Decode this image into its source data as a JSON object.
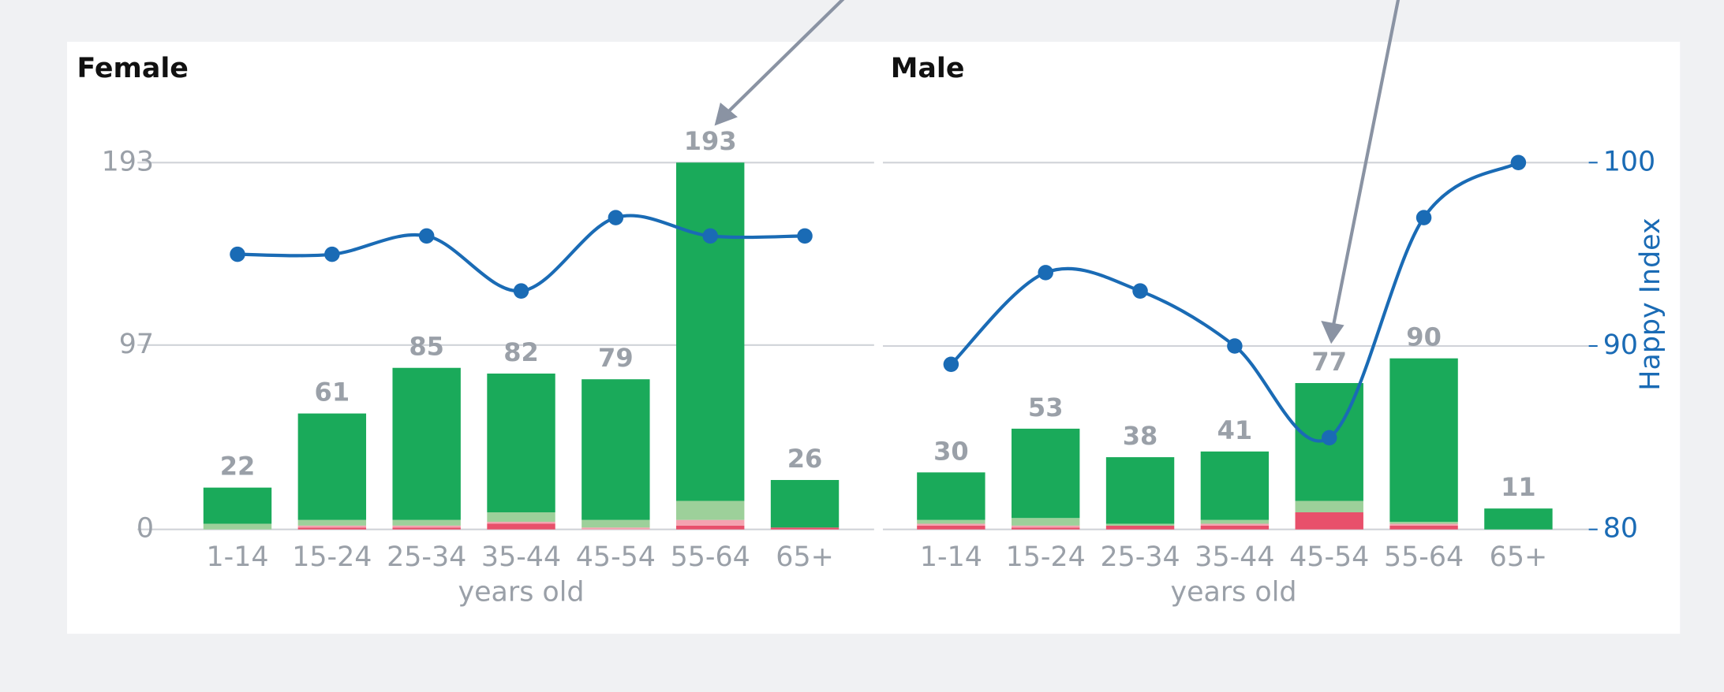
{
  "chart_data": [
    {
      "type": "bar",
      "title": "Female",
      "categories": [
        "1-14",
        "15-24",
        "25-34",
        "35-44",
        "45-54",
        "55-64",
        "65+"
      ],
      "series": [
        {
          "color": "#e8506b",
          "values": [
            0,
            1,
            1,
            3,
            0,
            2,
            1
          ]
        },
        {
          "color": "#f4a3b0",
          "values": [
            0,
            1,
            1,
            1,
            1,
            3,
            0
          ]
        },
        {
          "color": "#9dd09a",
          "values": [
            3,
            3,
            3,
            5,
            4,
            10,
            0
          ]
        },
        {
          "color": "#1aaa5a",
          "values": [
            19,
            56,
            80,
            73,
            74,
            178,
            25
          ]
        },
        {
          "type": "line",
          "axis": "y2",
          "color": "#1a6bb5",
          "values": [
            95,
            95,
            96,
            93,
            97,
            96,
            96
          ]
        }
      ],
      "totals": [
        22,
        61,
        85,
        82,
        79,
        193,
        26
      ],
      "xlabel": "years old",
      "ylim": [
        0,
        193
      ],
      "yticks": [
        0,
        97,
        193
      ],
      "y2lim": [
        80,
        100
      ],
      "grid": true
    },
    {
      "type": "bar",
      "title": "Male",
      "categories": [
        "1-14",
        "15-24",
        "25-34",
        "35-44",
        "45-54",
        "55-64",
        "65+"
      ],
      "series": [
        {
          "color": "#e8506b",
          "values": [
            2,
            1,
            2,
            2,
            9,
            2,
            0
          ]
        },
        {
          "color": "#f4a3b0",
          "values": [
            1,
            1,
            0,
            1,
            0,
            1,
            0
          ]
        },
        {
          "color": "#9dd09a",
          "values": [
            2,
            4,
            1,
            2,
            6,
            1,
            0
          ]
        },
        {
          "color": "#1aaa5a",
          "values": [
            25,
            47,
            35,
            36,
            62,
            86,
            11
          ]
        },
        {
          "type": "line",
          "axis": "y2",
          "color": "#1a6bb5",
          "values": [
            89,
            94,
            93,
            90,
            85,
            97,
            100
          ]
        }
      ],
      "totals": [
        30,
        53,
        38,
        41,
        77,
        90,
        11
      ],
      "xlabel": "years old",
      "y2label": "Happy Index",
      "ylim": [
        0,
        193
      ],
      "y2lim": [
        80,
        100
      ],
      "y2ticks": [
        80,
        90,
        100
      ],
      "grid": true
    }
  ]
}
